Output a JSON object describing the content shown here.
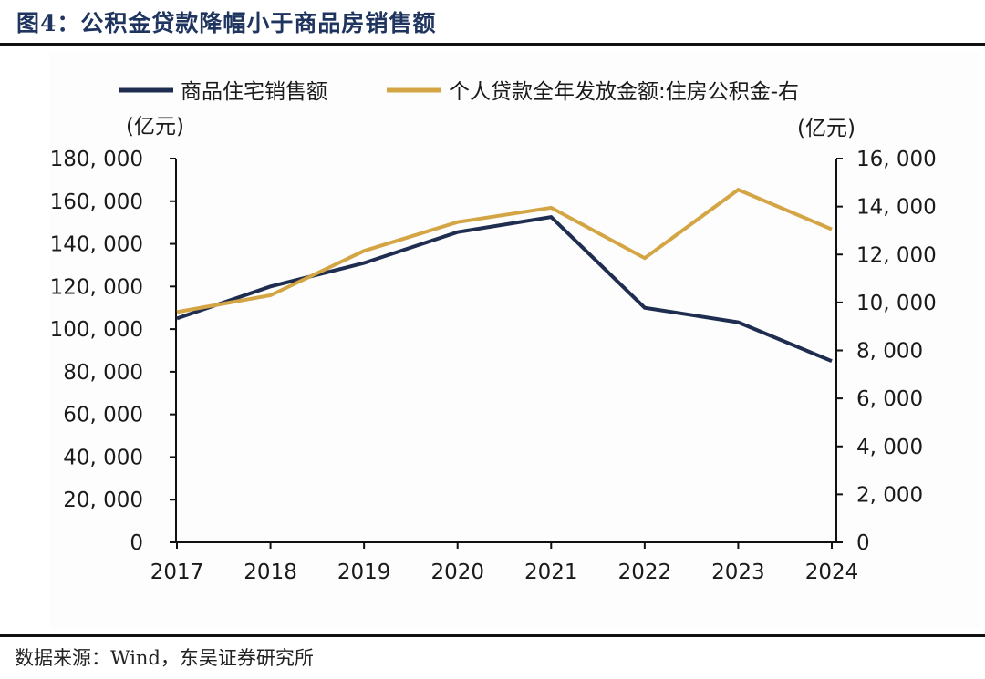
{
  "figure": {
    "title": "图4：公积金贷款降幅小于商品房销售额",
    "source": "数据来源：Wind，东吴证券研究所"
  },
  "chart_data": {
    "type": "line",
    "title": "公积金贷款降幅小于商品房销售额",
    "x": [
      "2017",
      "2018",
      "2019",
      "2020",
      "2021",
      "2022",
      "2023",
      "2024"
    ],
    "series": [
      {
        "name": "商品住宅销售额",
        "axis": "left",
        "color": "#1f2d50",
        "values": [
          105000,
          120000,
          131000,
          145500,
          152600,
          110000,
          103200,
          85000
        ]
      },
      {
        "name": "个人贷款全年发放金额:住房公积金-右",
        "axis": "right",
        "color": "#d4a544",
        "values": [
          9600,
          10300,
          12150,
          13350,
          13950,
          11850,
          14700,
          13050
        ]
      }
    ],
    "left_axis": {
      "unit": "(亿元)",
      "ylim": [
        0,
        180000
      ],
      "ticks": [
        0,
        20000,
        40000,
        60000,
        80000,
        100000,
        120000,
        140000,
        160000,
        180000
      ],
      "tick_labels": [
        "0",
        "20, 000",
        "40, 000",
        "60, 000",
        "80, 000",
        "100, 000",
        "120, 000",
        "140, 000",
        "160, 000",
        "180, 000"
      ]
    },
    "right_axis": {
      "unit": "(亿元)",
      "ylim": [
        0,
        16000
      ],
      "ticks": [
        0,
        2000,
        4000,
        6000,
        8000,
        10000,
        12000,
        14000,
        16000
      ],
      "tick_labels": [
        "0",
        "2, 000",
        "4, 000",
        "6, 000",
        "8, 000",
        "10, 000",
        "12, 000",
        "14, 000",
        "16, 000"
      ]
    },
    "xlabel": "",
    "grid": false,
    "legend_position": "top"
  }
}
